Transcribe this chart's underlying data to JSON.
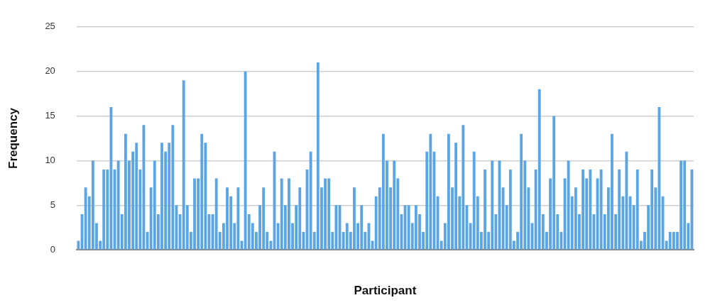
{
  "chart_data": {
    "type": "bar",
    "xlabel": "Participant",
    "ylabel": "Frequency",
    "color": "#5aa5e6",
    "categories": [
      null,
      null,
      null,
      null,
      null,
      null,
      null,
      null,
      null,
      null,
      null,
      null,
      null,
      null,
      null,
      null,
      null,
      null,
      null,
      null,
      null,
      null,
      null,
      null,
      null,
      null,
      null,
      null,
      null,
      null,
      null,
      null,
      null,
      null,
      null,
      null,
      null,
      null,
      null,
      null,
      null,
      null,
      null,
      null,
      null,
      null,
      null,
      null,
      null,
      null,
      null,
      null,
      null,
      null,
      null,
      null,
      null,
      null,
      null,
      null,
      null,
      null,
      null,
      null,
      null,
      null,
      null,
      null,
      null,
      null,
      null,
      null,
      null,
      null,
      null,
      null,
      null,
      null,
      null,
      null,
      null,
      null,
      null,
      null,
      null,
      null,
      null,
      null,
      null,
      null,
      null,
      null,
      null,
      null,
      null,
      null,
      null,
      null,
      null,
      null,
      null,
      null,
      null,
      null,
      null,
      null,
      null,
      null,
      null,
      null,
      null,
      null,
      null,
      null,
      null,
      null,
      null,
      null,
      null,
      null,
      null,
      null,
      null,
      null,
      null,
      null,
      null,
      null,
      null,
      null,
      null,
      null,
      null,
      null,
      null,
      null,
      null,
      null,
      null,
      null,
      null,
      null,
      null,
      null,
      null,
      null,
      null,
      null,
      null,
      null,
      null,
      null,
      null,
      null,
      null,
      null,
      null,
      null,
      null,
      null,
      null,
      null,
      null,
      null,
      null,
      null,
      null,
      null,
      null,
      null
    ],
    "values": [
      1,
      4,
      7,
      6,
      10,
      3,
      1,
      9,
      9,
      16,
      9,
      10,
      4,
      13,
      10,
      11,
      12,
      9,
      14,
      2,
      7,
      10,
      4,
      12,
      11,
      12,
      14,
      5,
      4,
      19,
      5,
      2,
      8,
      8,
      13,
      12,
      4,
      4,
      8,
      2,
      3,
      7,
      6,
      3,
      7,
      1,
      20,
      4,
      3,
      2,
      5,
      7,
      2,
      1,
      11,
      3,
      8,
      5,
      8,
      3,
      5,
      7,
      2,
      9,
      11,
      2,
      21,
      7,
      8,
      8,
      2,
      5,
      5,
      2,
      3,
      2,
      7,
      3,
      5,
      2,
      3,
      1,
      6,
      7,
      13,
      10,
      7,
      10,
      8,
      4,
      5,
      5,
      3,
      5,
      4,
      2,
      11,
      13,
      11,
      6,
      1,
      3,
      13,
      7,
      12,
      6,
      14,
      5,
      3,
      11,
      6,
      2,
      9,
      2,
      10,
      4,
      10,
      7,
      5,
      9,
      1,
      2,
      13,
      10,
      7,
      3,
      9,
      18,
      4,
      2,
      8,
      15,
      4,
      2,
      8,
      10,
      6,
      7,
      4,
      9,
      8,
      9,
      4,
      8,
      9,
      4,
      7,
      13,
      4,
      9,
      6,
      11,
      6,
      5,
      9,
      1,
      2,
      5,
      9,
      7,
      16,
      6,
      1,
      2,
      2,
      2,
      10,
      10,
      3,
      9
    ],
    "ylim": [
      0,
      25
    ],
    "yticks": [
      0,
      5,
      10,
      15,
      20,
      25
    ],
    "grid": "y",
    "legend": false
  }
}
